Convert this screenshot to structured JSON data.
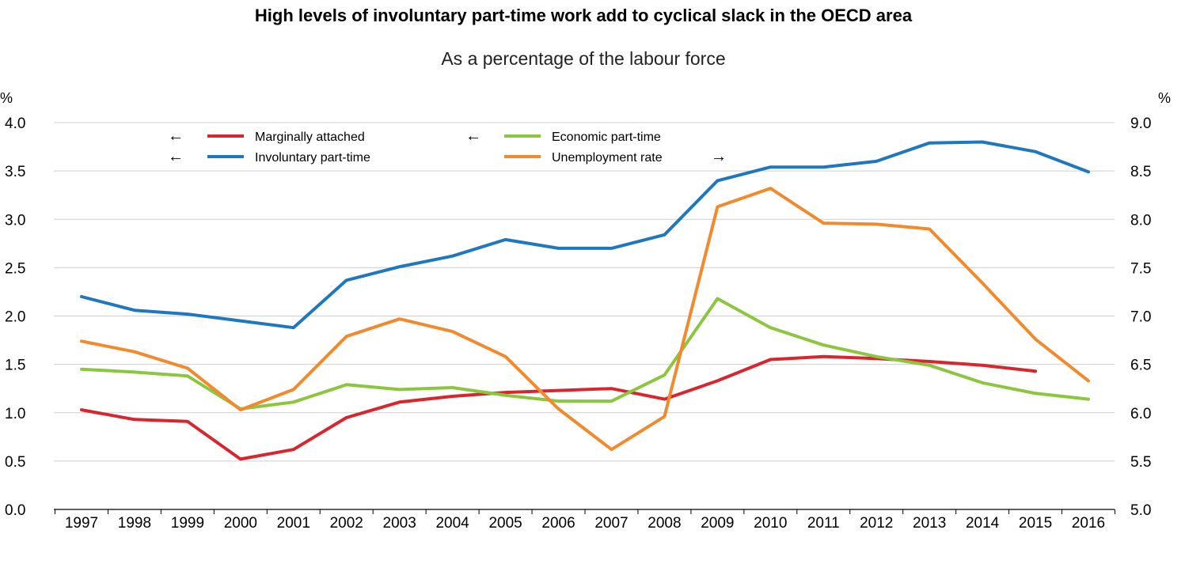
{
  "chart_data": {
    "type": "line",
    "title": "High levels of involuntary part-time work add to cyclical slack in the OECD area",
    "subtitle": "As a percentage of the labour force",
    "left_axis": {
      "label": "%",
      "ticks": [
        "0.0",
        "0.5",
        "1.0",
        "1.5",
        "2.0",
        "2.5",
        "3.0",
        "3.5",
        "4.0"
      ],
      "ylim": [
        0,
        4
      ]
    },
    "right_axis": {
      "label": "%",
      "ticks": [
        "5.0",
        "5.5",
        "6.0",
        "6.5",
        "7.0",
        "7.5",
        "8.0",
        "8.5",
        "9.0"
      ],
      "ylim": [
        5,
        9
      ]
    },
    "x": [
      "1997",
      "1998",
      "1999",
      "2000",
      "2001",
      "2002",
      "2003",
      "2004",
      "2005",
      "2006",
      "2007",
      "2008",
      "2009",
      "2010",
      "2011",
      "2012",
      "2013",
      "2014",
      "2015",
      "2016"
    ],
    "grid": true,
    "legend_position": "top-left",
    "series": [
      {
        "name": "Marginally attached",
        "axis": "left",
        "arrow": "←",
        "color": "#d7262e",
        "values": [
          1.03,
          0.93,
          0.91,
          0.52,
          0.62,
          0.95,
          1.11,
          1.17,
          1.21,
          1.23,
          1.25,
          1.14,
          1.33,
          1.55,
          1.58,
          1.56,
          1.53,
          1.49,
          1.43,
          null
        ]
      },
      {
        "name": "Involuntary part-time",
        "axis": "left",
        "arrow": "←",
        "color": "#1f77bf",
        "values": [
          2.2,
          2.06,
          2.02,
          1.95,
          1.88,
          2.37,
          2.51,
          2.62,
          2.79,
          2.7,
          2.7,
          2.84,
          3.4,
          3.54,
          3.54,
          3.6,
          3.79,
          3.8,
          3.7,
          3.49
        ]
      },
      {
        "name": "Economic part-time",
        "axis": "left",
        "arrow": "←",
        "color": "#8cc63f",
        "values": [
          1.45,
          1.42,
          1.38,
          1.04,
          1.11,
          1.29,
          1.24,
          1.26,
          1.18,
          1.12,
          1.12,
          1.39,
          2.18,
          1.88,
          1.7,
          1.58,
          1.49,
          1.31,
          1.2,
          1.14
        ]
      },
      {
        "name": "Unemployment rate",
        "axis": "right",
        "arrow": "→",
        "color": "#f28a2d",
        "values": [
          6.74,
          6.63,
          6.46,
          6.03,
          6.24,
          6.79,
          6.97,
          6.84,
          6.58,
          6.04,
          5.62,
          5.96,
          8.13,
          8.32,
          7.96,
          7.95,
          7.9,
          7.34,
          6.76,
          6.33
        ]
      }
    ]
  }
}
